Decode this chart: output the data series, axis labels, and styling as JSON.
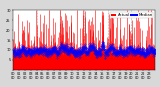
{
  "background_color": "#d8d8d8",
  "plot_bg_color": "#ffffff",
  "bar_color": "#ff0000",
  "median_color": "#0000ff",
  "ylim": [
    0,
    30
  ],
  "num_points": 1440,
  "seed": 7,
  "legend_actual_color": "#ff0000",
  "legend_median_color": "#0000ff",
  "x_tick_interval": 60,
  "dashed_vline_positions": [
    240,
    480,
    720,
    960,
    1200
  ],
  "ytick_values": [
    5,
    10,
    15,
    20,
    25,
    30
  ],
  "title_fontsize": 3.0,
  "tick_fontsize": 2.5,
  "legend_fontsize": 2.8
}
